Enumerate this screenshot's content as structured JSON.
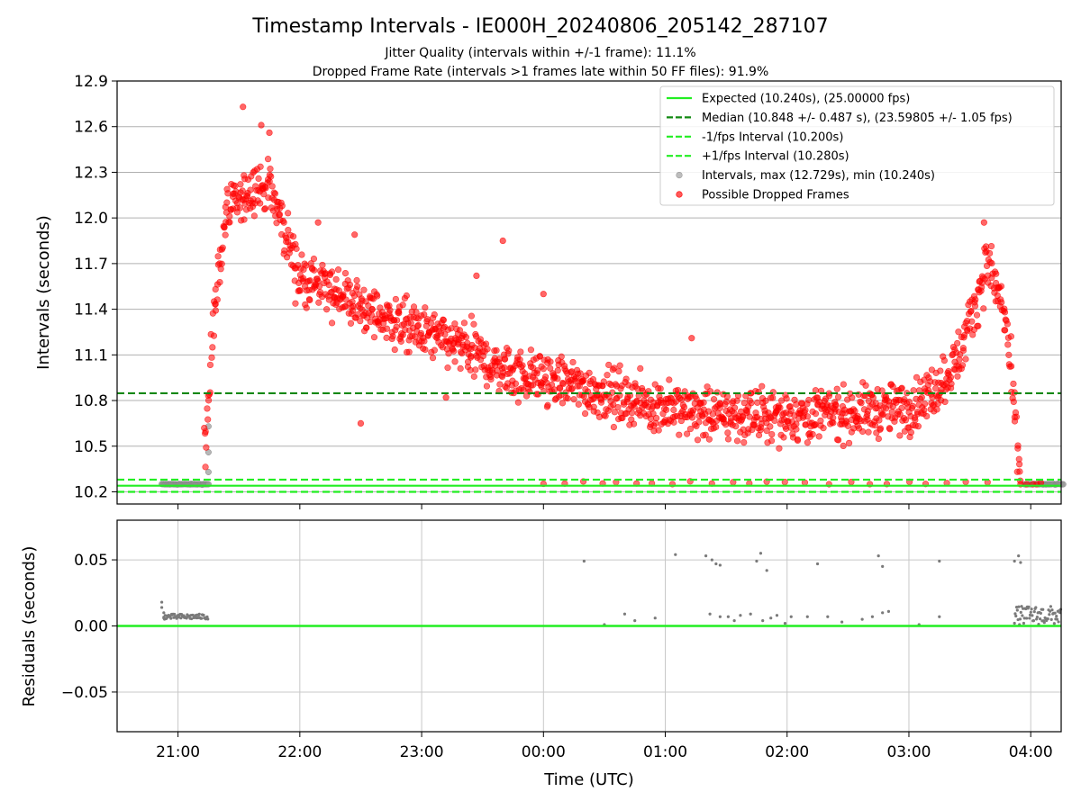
{
  "chart_data": [
    {
      "type": "scatter",
      "title": "Timestamp Intervals - IE000H_20240806_205142_287107",
      "subtitle_lines": [
        "Jitter Quality (intervals within +/-1 frame): 11.1%",
        "Dropped Frame Rate (intervals >1 frames late within 50 FF files): 91.9%"
      ],
      "ylabel": "Intervals (seconds)",
      "xlabel": "",
      "ylim": [
        10.12,
        12.9
      ],
      "yticks": [
        "10.2",
        "10.5",
        "10.8",
        "11.1",
        "11.4",
        "11.7",
        "12.0",
        "12.3",
        "12.6",
        "12.9"
      ],
      "ytick_values": [
        10.2,
        10.5,
        10.8,
        11.1,
        11.4,
        11.7,
        12.0,
        12.3,
        12.6,
        12.9
      ],
      "grid": true,
      "legend_position": "top-right",
      "legend": [
        {
          "label": "Expected (10.240s), (25.00000 fps)",
          "kind": "line",
          "color": "#22ee22",
          "dash": false
        },
        {
          "label": "Median (10.848 +/- 0.487 s), (23.59805 +/- 1.05 fps)",
          "kind": "line",
          "color": "#118811",
          "dash": true
        },
        {
          "label": "-1/fps Interval (10.200s)",
          "kind": "line",
          "color": "#22ee22",
          "dash": true
        },
        {
          "label": "+1/fps Interval (10.280s)",
          "kind": "line",
          "color": "#22ee22",
          "dash": true
        },
        {
          "label": "Intervals, max (12.729s), min (10.240s)",
          "kind": "point",
          "color": "#999999"
        },
        {
          "label": "Possible Dropped Frames",
          "kind": "point",
          "color": "#ff0000"
        }
      ],
      "reference_lines": {
        "expected": 10.24,
        "median": 10.848,
        "minus_one_fps": 10.2,
        "plus_one_fps": 10.28
      },
      "dropped_trend": [
        {
          "t": "21:13",
          "y": 10.45
        },
        {
          "t": "21:18",
          "y": 11.4
        },
        {
          "t": "21:23",
          "y": 12.0
        },
        {
          "t": "21:30",
          "y": 12.1
        },
        {
          "t": "21:38",
          "y": 12.2
        },
        {
          "t": "21:45",
          "y": 12.2
        },
        {
          "t": "21:52",
          "y": 11.95
        },
        {
          "t": "22:00",
          "y": 11.6
        },
        {
          "t": "22:20",
          "y": 11.5
        },
        {
          "t": "22:40",
          "y": 11.35
        },
        {
          "t": "23:00",
          "y": 11.25
        },
        {
          "t": "23:20",
          "y": 11.15
        },
        {
          "t": "23:40",
          "y": 11.0
        },
        {
          "t": "00:00",
          "y": 10.95
        },
        {
          "t": "00:30",
          "y": 10.85
        },
        {
          "t": "01:00",
          "y": 10.75
        },
        {
          "t": "01:30",
          "y": 10.7
        },
        {
          "t": "02:00",
          "y": 10.7
        },
        {
          "t": "02:30",
          "y": 10.72
        },
        {
          "t": "03:00",
          "y": 10.75
        },
        {
          "t": "03:15",
          "y": 10.9
        },
        {
          "t": "03:25",
          "y": 11.1
        },
        {
          "t": "03:32",
          "y": 11.4
        },
        {
          "t": "03:38",
          "y": 11.7
        },
        {
          "t": "03:42",
          "y": 11.6
        },
        {
          "t": "03:48",
          "y": 11.3
        },
        {
          "t": "03:52",
          "y": 10.7
        },
        {
          "t": "03:55",
          "y": 10.3
        }
      ],
      "dropped_spread": 0.18,
      "extreme_points": [
        {
          "t": "21:32",
          "y": 12.73
        },
        {
          "t": "21:41",
          "y": 12.61
        },
        {
          "t": "21:45",
          "y": 12.56
        },
        {
          "t": "22:27",
          "y": 11.89
        },
        {
          "t": "22:09",
          "y": 11.97
        },
        {
          "t": "23:40",
          "y": 11.85
        },
        {
          "t": "23:27",
          "y": 11.62
        },
        {
          "t": "00:00",
          "y": 11.5
        },
        {
          "t": "01:13",
          "y": 11.21
        },
        {
          "t": "03:37",
          "y": 11.97
        },
        {
          "t": "22:30",
          "y": 10.65
        },
        {
          "t": "23:12",
          "y": 10.82
        }
      ],
      "gray_clusters": [
        {
          "start": "20:52",
          "end": "21:15",
          "y": 10.25
        },
        {
          "start": "03:57",
          "end": "04:16",
          "y": 10.25
        }
      ],
      "gray_scatter": [
        {
          "t": "21:15",
          "y": 10.33
        },
        {
          "t": "21:15",
          "y": 10.46
        },
        {
          "t": "21:15",
          "y": 10.63
        }
      ],
      "baseline_red": [
        {
          "t": "03:55",
          "y": 10.25
        },
        {
          "t": "03:58",
          "y": 10.25
        },
        {
          "t": "04:01",
          "y": 10.25
        },
        {
          "t": "04:03",
          "y": 10.25
        },
        {
          "t": "04:05",
          "y": 10.26
        }
      ]
    },
    {
      "type": "scatter",
      "ylabel": "Residuals (seconds)",
      "xlabel": "Time (UTC)",
      "ylim": [
        -0.08,
        0.08
      ],
      "yticks": [
        "−0.05",
        "0.00",
        "0.05"
      ],
      "ytick_values": [
        -0.05,
        0.0,
        0.05
      ],
      "xlim": [
        "20:30",
        "04:15"
      ],
      "xticks": [
        "21:00",
        "22:00",
        "23:00",
        "00:00",
        "01:00",
        "02:00",
        "03:00",
        "04:00"
      ],
      "grid": true,
      "zero_line_color": "#22ee22",
      "points": [
        {
          "t": "20:52",
          "y": 0.018
        },
        {
          "t": "20:52",
          "y": 0.014
        },
        {
          "t": "20:53",
          "y": 0.01
        },
        {
          "t": "20:53",
          "y": 0.006
        },
        {
          "t": "00:20",
          "y": 0.049
        },
        {
          "t": "00:30",
          "y": 0.001
        },
        {
          "t": "00:40",
          "y": 0.009
        },
        {
          "t": "00:45",
          "y": 0.004
        },
        {
          "t": "00:55",
          "y": 0.006
        },
        {
          "t": "01:05",
          "y": 0.054
        },
        {
          "t": "01:20",
          "y": 0.053
        },
        {
          "t": "01:23",
          "y": 0.05
        },
        {
          "t": "01:25",
          "y": 0.047
        },
        {
          "t": "01:27",
          "y": 0.046
        },
        {
          "t": "01:22",
          "y": 0.009
        },
        {
          "t": "01:27",
          "y": 0.007
        },
        {
          "t": "01:31",
          "y": 0.007
        },
        {
          "t": "01:34",
          "y": 0.004
        },
        {
          "t": "01:37",
          "y": 0.008
        },
        {
          "t": "01:42",
          "y": 0.009
        },
        {
          "t": "01:45",
          "y": 0.049
        },
        {
          "t": "01:47",
          "y": 0.055
        },
        {
          "t": "01:50",
          "y": 0.042
        },
        {
          "t": "01:48",
          "y": 0.004
        },
        {
          "t": "01:52",
          "y": 0.006
        },
        {
          "t": "01:55",
          "y": 0.008
        },
        {
          "t": "01:59",
          "y": 0.002
        },
        {
          "t": "02:02",
          "y": 0.007
        },
        {
          "t": "02:10",
          "y": 0.007
        },
        {
          "t": "02:15",
          "y": 0.047
        },
        {
          "t": "02:20",
          "y": 0.007
        },
        {
          "t": "02:27",
          "y": 0.003
        },
        {
          "t": "02:37",
          "y": 0.005
        },
        {
          "t": "02:42",
          "y": 0.007
        },
        {
          "t": "02:45",
          "y": 0.053
        },
        {
          "t": "02:47",
          "y": 0.045
        },
        {
          "t": "02:47",
          "y": 0.01
        },
        {
          "t": "02:50",
          "y": 0.011
        },
        {
          "t": "03:05",
          "y": 0.001
        },
        {
          "t": "03:15",
          "y": 0.049
        },
        {
          "t": "03:15",
          "y": 0.007
        },
        {
          "t": "03:52",
          "y": 0.049
        },
        {
          "t": "03:54",
          "y": 0.053
        },
        {
          "t": "03:55",
          "y": 0.048
        }
      ],
      "clusters": [
        {
          "start": "20:53",
          "end": "21:15",
          "y_min": 0.005,
          "y_max": 0.009
        },
        {
          "start": "03:52",
          "end": "04:15",
          "y_min": 0.001,
          "y_max": 0.015
        }
      ]
    }
  ]
}
